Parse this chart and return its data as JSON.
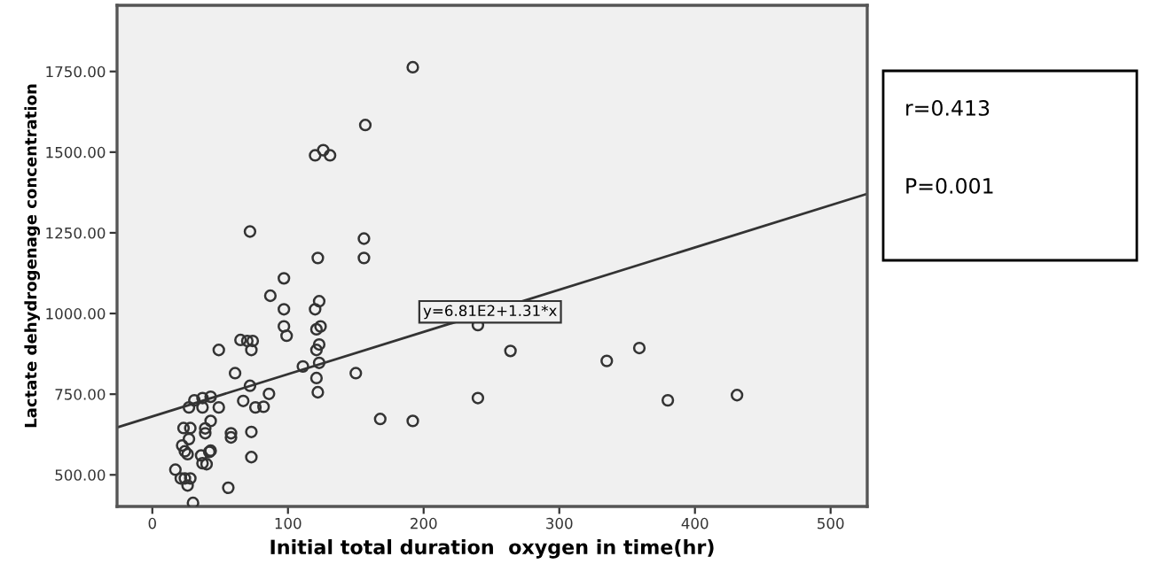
{
  "chart_data": {
    "type": "scatter",
    "xlabel": "Initial total duration  oxygen in time(hr)",
    "ylabel": "Lactate dehydrogenage concentration",
    "xlim": [
      -26,
      527
    ],
    "ylim": [
      402,
      1955
    ],
    "xticks": [
      0,
      100,
      200,
      300,
      400,
      500
    ],
    "yticks": [
      {
        "value": 500,
        "label": "500.00"
      },
      {
        "value": 750,
        "label": "750.00"
      },
      {
        "value": 1000,
        "label": "1000.00"
      },
      {
        "value": 1250,
        "label": "1250.00"
      },
      {
        "value": 1500,
        "label": "1500.00"
      },
      {
        "value": 1750,
        "label": "1750.00"
      }
    ],
    "grid": false,
    "legend": false,
    "series": [
      {
        "marker": "circle",
        "color": "#333333",
        "x": [
          192,
          157,
          120,
          126,
          131,
          72,
          156,
          122,
          156,
          97,
          87,
          97,
          123,
          120,
          97,
          124,
          121,
          99,
          123,
          121,
          240,
          264,
          359,
          335,
          380,
          431,
          240,
          168,
          192,
          150,
          111,
          123,
          121,
          122,
          49,
          65,
          70,
          74,
          73,
          61,
          72,
          86,
          67,
          82,
          76,
          49,
          31,
          37,
          43,
          37,
          27,
          43,
          39,
          39,
          23,
          28,
          58,
          58,
          73,
          73,
          27,
          22,
          24,
          26,
          36,
          42,
          43,
          37,
          40,
          17,
          21,
          24,
          28,
          26,
          56,
          30
        ],
        "values": [
          1763,
          1584,
          1490,
          1506,
          1490,
          1254,
          1232,
          1172,
          1172,
          1109,
          1055,
          1013,
          1038,
          1013,
          960,
          960,
          951,
          931,
          904,
          887,
          964,
          884,
          893,
          853,
          731,
          747,
          738,
          673,
          667,
          815,
          836,
          847,
          800,
          756,
          887,
          918,
          915,
          915,
          887,
          815,
          776,
          751,
          729,
          711,
          709,
          709,
          731,
          738,
          742,
          709,
          709,
          667,
          644,
          629,
          645,
          645,
          629,
          616,
          633,
          555,
          611,
          591,
          573,
          564,
          560,
          571,
          575,
          536,
          533,
          516,
          489,
          489,
          489,
          467,
          460,
          413
        ]
      },
      {
        "type": "line",
        "marker": "none",
        "color": "#333333",
        "x": [
          -26,
          527
        ],
        "values": [
          647,
          1371
        ]
      }
    ],
    "annotations": [
      {
        "text": "y=6.81E2+1.31*x",
        "x": 249,
        "y": 1005
      },
      "r=0.413",
      "P=0.001"
    ]
  }
}
